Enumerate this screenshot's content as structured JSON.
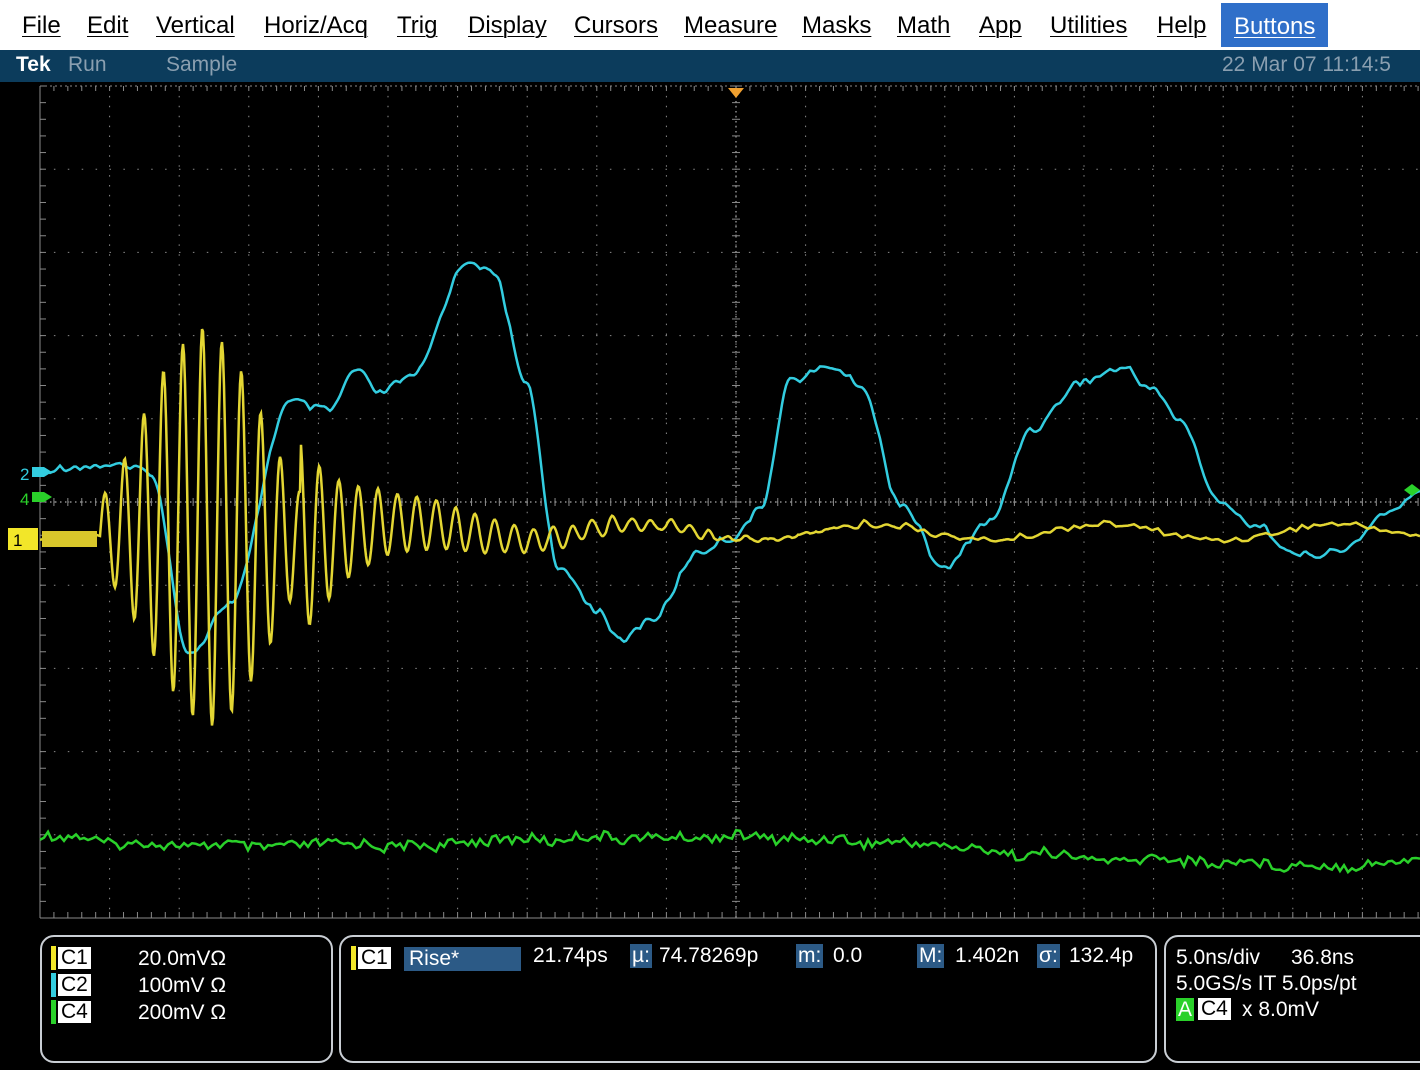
{
  "menu": [
    "File",
    "Edit",
    "Vertical",
    "Horiz/Acq",
    "Trig",
    "Display",
    "Cursors",
    "Measure",
    "Masks",
    "Math",
    "App",
    "Utilities",
    "Help",
    "Buttons"
  ],
  "status": {
    "brand": "Tek",
    "state": "Run",
    "mode": "Sample",
    "datetime": "22 Mar 07 11:14:5"
  },
  "channels": [
    {
      "id": "C1",
      "scale": "20.0mVΩ",
      "marker": "1",
      "color": "#f2e629"
    },
    {
      "id": "C2",
      "scale": "100mV Ω",
      "marker": "2",
      "color": "#33cde0"
    },
    {
      "id": "C4",
      "scale": "200mV Ω",
      "marker": "4",
      "color": "#2ad12a"
    }
  ],
  "measurement": {
    "channel": "C1",
    "name": "Rise*",
    "value": "21.74ps",
    "mean_label": "µ:",
    "mean": "74.78269p",
    "min_label": "m:",
    "min": "0.0",
    "max_label": "M:",
    "max": "1.402n",
    "sigma_label": "σ:",
    "sigma": "132.4p"
  },
  "timebase": {
    "scale": "5.0ns/div",
    "position": "36.8ns",
    "sample_rate": "5.0GS/s IT 5.0ps/pt",
    "trigger_label": "A",
    "trigger_source": "C4",
    "trigger_level": "x 8.0mV"
  },
  "colors": {
    "menu_active_bg": "#2f6fc9",
    "statusbar_bg": "#0c3c5c",
    "grid": "#8a8a8a",
    "screen_bg": "#000000"
  }
}
